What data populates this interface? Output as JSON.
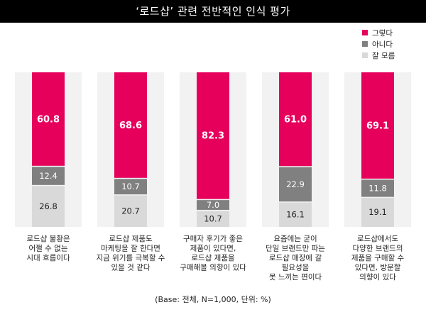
{
  "title": "‘로드샵’ 관련 전반적인 인식 평가",
  "footnote": "(Base: 전체, N=1,000, 단위: %)",
  "chart_data": {
    "type": "bar",
    "stacked": true,
    "normalized": true,
    "categories": [
      [
        "로드샵 불황은",
        "어쩔 수 없는",
        "시대 흐름이다"
      ],
      [
        "로드샵 제품도",
        "마케팅을 잘 한다면",
        "지금 위기를 극복할 수",
        "있을 것 같다"
      ],
      [
        "구매자 후기가 좋은",
        "제품이 있다면,",
        "로드샵 제품을",
        "구매해볼 의향이 있다"
      ],
      [
        "요즘에는 굳이",
        "단일 브랜드만 파는",
        "로드샵 매장에 갈",
        "필요성을",
        "못 느끼는 편이다"
      ],
      [
        "로드샵에서도",
        "다양한 브랜드의",
        "제품을 구매할 수",
        "있다면, 방문할",
        "의향이 있다"
      ]
    ],
    "series": [
      {
        "name": "그렇다",
        "color": "#e6005c",
        "label_color": "#ffffff",
        "values": [
          60.8,
          68.6,
          82.3,
          61.0,
          69.1
        ]
      },
      {
        "name": "아니다",
        "color": "#808080",
        "label_color": "#ffffff",
        "values": [
          12.4,
          10.7,
          7.0,
          22.9,
          11.8
        ]
      },
      {
        "name": "잘 모름",
        "color": "#d9d9d9",
        "label_color": "#222222",
        "values": [
          26.8,
          20.7,
          10.7,
          16.1,
          19.1
        ]
      }
    ],
    "ylim": [
      0,
      100
    ],
    "legend_position": "top-right",
    "background_band_color": "#f2f2f2"
  }
}
